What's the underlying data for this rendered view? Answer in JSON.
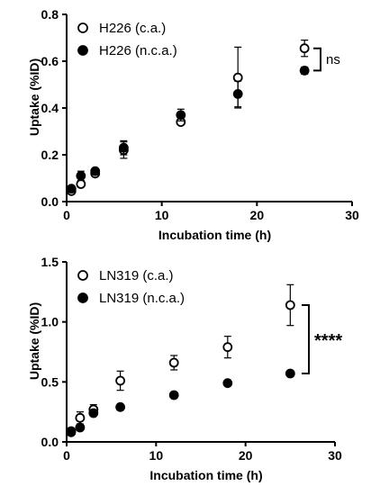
{
  "chart_data": [
    {
      "type": "scatter",
      "title": "",
      "xlabel": "Incubation time (h)",
      "ylabel": "Uptake (%ID)",
      "xlim": [
        0,
        30
      ],
      "ylim": [
        0,
        0.8
      ],
      "x_ticks": [
        "0",
        "10",
        "20",
        "30"
      ],
      "y_ticks": [
        "0.0",
        "0.2",
        "0.4",
        "0.6",
        "0.8"
      ],
      "grid": false,
      "legend_position": "top-left",
      "series": [
        {
          "name": "H226 (c.a.)",
          "marker": "open-circle",
          "x": [
            0.5,
            1.5,
            3,
            6,
            12,
            18,
            25
          ],
          "y": [
            0.045,
            0.075,
            0.12,
            0.22,
            0.34,
            0.53,
            0.655
          ],
          "err": [
            0.005,
            0.01,
            0.01,
            0.035,
            0.01,
            0.13,
            0.035
          ]
        },
        {
          "name": "H226 (n.c.a.)",
          "marker": "filled-circle",
          "x": [
            0.5,
            1.5,
            3,
            6,
            12,
            18,
            25
          ],
          "y": [
            0.055,
            0.11,
            0.13,
            0.23,
            0.37,
            0.46,
            0.56
          ],
          "err": [
            0.005,
            0.02,
            0.01,
            0.03,
            0.025,
            0.055,
            0.015
          ]
        }
      ],
      "significance": {
        "label": "ns",
        "x": 25,
        "y_range": [
          0.56,
          0.655
        ]
      }
    },
    {
      "type": "scatter",
      "title": "",
      "xlabel": "Incubation time (h)",
      "ylabel": "Uptake (%ID)",
      "xlim": [
        0,
        30
      ],
      "ylim": [
        0,
        1.5
      ],
      "x_ticks": [
        "0",
        "10",
        "20",
        "30"
      ],
      "y_ticks": [
        "0.0",
        "0.5",
        "1.0",
        "1.5"
      ],
      "grid": false,
      "legend_position": "top-left",
      "series": [
        {
          "name": "LN319 (c.a.)",
          "marker": "open-circle",
          "x": [
            0.5,
            1.5,
            3,
            6,
            12,
            18,
            25
          ],
          "y": [
            0.09,
            0.2,
            0.27,
            0.51,
            0.66,
            0.79,
            1.14
          ],
          "err": [
            0.02,
            0.05,
            0.04,
            0.08,
            0.06,
            0.09,
            0.17
          ]
        },
        {
          "name": "LN319 (n.c.a.)",
          "marker": "filled-circle",
          "x": [
            0.5,
            1.5,
            3,
            6,
            12,
            18,
            25
          ],
          "y": [
            0.08,
            0.12,
            0.24,
            0.29,
            0.39,
            0.49,
            0.57
          ],
          "err": [
            0.01,
            0.02,
            0.02,
            0.02,
            0.02,
            0.02,
            0.02
          ]
        }
      ],
      "significance": {
        "label": "****",
        "x": 25,
        "y_range": [
          0.57,
          1.14
        ]
      }
    }
  ]
}
